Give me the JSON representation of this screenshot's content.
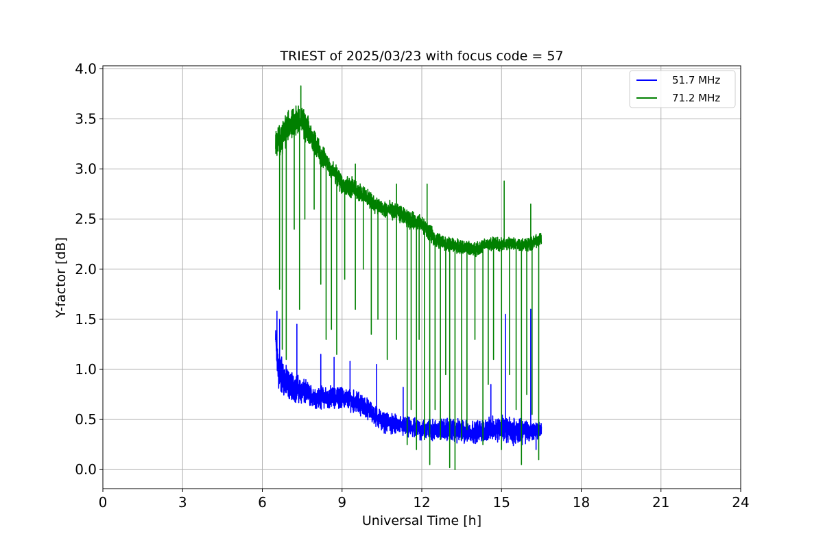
{
  "chart_data": {
    "type": "line",
    "title": "TRIEST of 2025/03/23 with focus code = 57",
    "xlabel": "Universal Time [h]",
    "ylabel": "Y-factor [dB]",
    "xlim": [
      0,
      24
    ],
    "ylim": [
      -0.19,
      4.03
    ],
    "xticks": [
      0,
      3,
      6,
      9,
      12,
      15,
      18,
      21,
      24
    ],
    "yticks": [
      0.0,
      0.5,
      1.0,
      1.5,
      2.0,
      2.5,
      3.0,
      3.5,
      4.0
    ],
    "grid": true,
    "legend_position": "top-right",
    "series": [
      {
        "name": "51.7 MHz",
        "color": "#0000ff",
        "x": [
          6.5,
          6.6,
          6.8,
          7.0,
          7.5,
          8.0,
          8.5,
          9.0,
          9.5,
          10.0,
          10.5,
          11.0,
          11.5,
          12.0,
          12.5,
          13.0,
          13.5,
          14.0,
          14.5,
          15.0,
          15.5,
          16.0,
          16.5
        ],
        "values": [
          1.3,
          1.0,
          0.9,
          0.85,
          0.78,
          0.72,
          0.72,
          0.72,
          0.68,
          0.6,
          0.48,
          0.45,
          0.42,
          0.4,
          0.4,
          0.4,
          0.38,
          0.38,
          0.4,
          0.42,
          0.38,
          0.38,
          0.4
        ],
        "spread": [
          0.15,
          0.3,
          0.2,
          0.18,
          0.15,
          0.12,
          0.13,
          0.12,
          0.13,
          0.12,
          0.12,
          0.11,
          0.12,
          0.12,
          0.12,
          0.13,
          0.14,
          0.13,
          0.13,
          0.15,
          0.15,
          0.13,
          0.1
        ],
        "spikes": [
          [
            6.55,
            1.58
          ],
          [
            6.65,
            1.5
          ],
          [
            7.3,
            1.45
          ],
          [
            8.2,
            1.15
          ],
          [
            8.7,
            1.12
          ],
          [
            9.3,
            1.08
          ],
          [
            10.3,
            1.05
          ],
          [
            11.3,
            0.82
          ],
          [
            14.6,
            0.85
          ],
          [
            15.15,
            1.55
          ],
          [
            16.1,
            1.6
          ],
          [
            16.3,
            0.2
          ]
        ]
      },
      {
        "name": "71.2 MHz",
        "color": "#008000",
        "x": [
          6.5,
          6.8,
          7.0,
          7.4,
          7.8,
          8.2,
          8.6,
          9.0,
          9.5,
          10.0,
          10.5,
          11.0,
          11.5,
          12.0,
          12.5,
          13.0,
          13.5,
          14.0,
          14.5,
          15.0,
          15.5,
          16.0,
          16.5
        ],
        "values": [
          3.25,
          3.35,
          3.45,
          3.5,
          3.35,
          3.15,
          3.0,
          2.85,
          2.8,
          2.7,
          2.6,
          2.58,
          2.5,
          2.45,
          2.3,
          2.25,
          2.22,
          2.2,
          2.25,
          2.25,
          2.25,
          2.25,
          2.3
        ],
        "spread": [
          0.15,
          0.2,
          0.18,
          0.18,
          0.15,
          0.13,
          0.12,
          0.12,
          0.12,
          0.1,
          0.1,
          0.1,
          0.1,
          0.1,
          0.09,
          0.08,
          0.08,
          0.08,
          0.08,
          0.08,
          0.08,
          0.08,
          0.07
        ],
        "dips": [
          [
            6.65,
            1.8
          ],
          [
            6.75,
            1.2
          ],
          [
            6.9,
            1.1
          ],
          [
            7.2,
            2.4
          ],
          [
            7.4,
            1.6
          ],
          [
            7.6,
            2.5
          ],
          [
            7.95,
            2.6
          ],
          [
            8.2,
            1.85
          ],
          [
            8.4,
            1.3
          ],
          [
            8.6,
            1.4
          ],
          [
            8.8,
            1.15
          ],
          [
            9.1,
            1.9
          ],
          [
            9.5,
            1.6
          ],
          [
            9.8,
            2.0
          ],
          [
            10.1,
            1.35
          ],
          [
            10.35,
            1.5
          ],
          [
            10.7,
            1.1
          ],
          [
            11.05,
            1.3
          ],
          [
            11.45,
            0.25
          ],
          [
            11.6,
            0.6
          ],
          [
            11.8,
            0.2
          ],
          [
            11.9,
            1.3
          ],
          [
            12.1,
            0.3
          ],
          [
            12.3,
            0.05
          ],
          [
            12.5,
            0.6
          ],
          [
            12.7,
            0.3
          ],
          [
            12.9,
            0.95
          ],
          [
            13.05,
            0.02
          ],
          [
            13.25,
            0.0
          ],
          [
            13.5,
            0.3
          ],
          [
            13.7,
            0.4
          ],
          [
            14.0,
            1.3
          ],
          [
            14.3,
            0.25
          ],
          [
            14.5,
            0.85
          ],
          [
            14.7,
            1.1
          ],
          [
            15.0,
            0.2
          ],
          [
            15.3,
            0.95
          ],
          [
            15.55,
            0.6
          ],
          [
            15.75,
            0.05
          ],
          [
            15.95,
            0.75
          ],
          [
            16.15,
            0.55
          ],
          [
            16.4,
            0.1
          ]
        ],
        "spikes": [
          [
            7.45,
            3.83
          ],
          [
            15.1,
            2.88
          ],
          [
            16.1,
            2.65
          ],
          [
            9.5,
            3.05
          ],
          [
            11.05,
            2.85
          ],
          [
            12.2,
            2.85
          ]
        ]
      }
    ]
  }
}
